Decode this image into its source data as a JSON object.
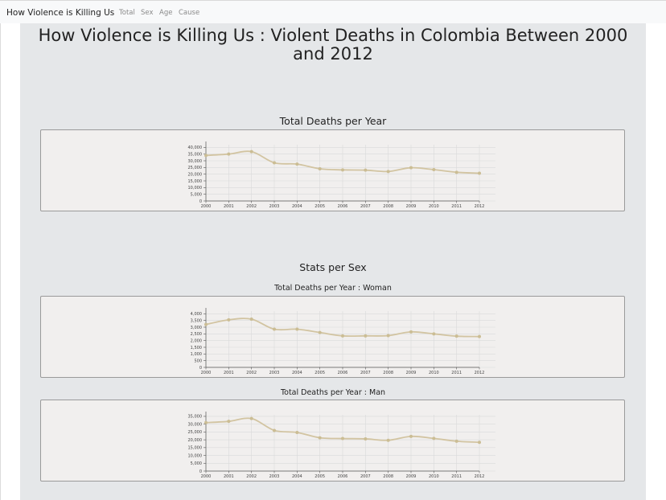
{
  "navbar": {
    "brand": "How Violence is Killing Us",
    "links": [
      "Total",
      "Sex",
      "Age",
      "Cause"
    ]
  },
  "page": {
    "title": "How Violence is Killing Us : Violent Deaths in Colombia Between 2000 and 2012",
    "section_total": "Total Deaths per Year",
    "section_sex": "Stats per Sex"
  },
  "colors": {
    "line": "#d2c4a1",
    "point": "#cbbd94",
    "grid": "#dadada"
  },
  "chart_data": [
    {
      "type": "line",
      "title": "Total Deaths per Year",
      "x": [
        "2000",
        "2001",
        "2002",
        "2003",
        "2004",
        "2005",
        "2006",
        "2007",
        "2008",
        "2009",
        "2010",
        "2011",
        "2012"
      ],
      "y": [
        34000,
        35000,
        36800,
        28500,
        27500,
        24000,
        23200,
        23000,
        22000,
        24800,
        23400,
        21400,
        20700
      ],
      "yticks": [
        0,
        5000,
        10000,
        15000,
        20000,
        25000,
        30000,
        35000,
        40000
      ],
      "yticklabels": [
        "0",
        "5,000",
        "10,000",
        "15,000",
        "20,000",
        "25,000",
        "30,000",
        "35,000",
        "40,000"
      ],
      "ylim": [
        0,
        42000
      ],
      "grid": true
    },
    {
      "type": "line",
      "title": "Total Deaths per Year : Woman",
      "x": [
        "2000",
        "2001",
        "2002",
        "2003",
        "2004",
        "2005",
        "2006",
        "2007",
        "2008",
        "2009",
        "2010",
        "2011",
        "2012"
      ],
      "y": [
        3200,
        3550,
        3600,
        2850,
        2850,
        2600,
        2350,
        2350,
        2370,
        2650,
        2500,
        2330,
        2300
      ],
      "yticks": [
        0,
        500,
        1000,
        1500,
        2000,
        2500,
        3000,
        3500,
        4000
      ],
      "yticklabels": [
        "0",
        "500",
        "1,000",
        "1,500",
        "2,000",
        "2,500",
        "3,000",
        "3,500",
        "4,000"
      ],
      "ylim": [
        0,
        4200
      ],
      "grid": true
    },
    {
      "type": "line",
      "title": "Total Deaths per Year : Man",
      "x": [
        "2000",
        "2001",
        "2002",
        "2003",
        "2004",
        "2005",
        "2006",
        "2007",
        "2008",
        "2009",
        "2010",
        "2011",
        "2012"
      ],
      "y": [
        31000,
        31800,
        33600,
        26000,
        24700,
        21300,
        20800,
        20600,
        19700,
        22200,
        20900,
        19100,
        18400
      ],
      "yticks": [
        0,
        5000,
        10000,
        15000,
        20000,
        25000,
        30000,
        35000
      ],
      "yticklabels": [
        "0",
        "5,000",
        "10,000",
        "15,000",
        "20,000",
        "25,000",
        "30,000",
        "35,000"
      ],
      "ylim": [
        0,
        36000
      ],
      "grid": true
    }
  ]
}
